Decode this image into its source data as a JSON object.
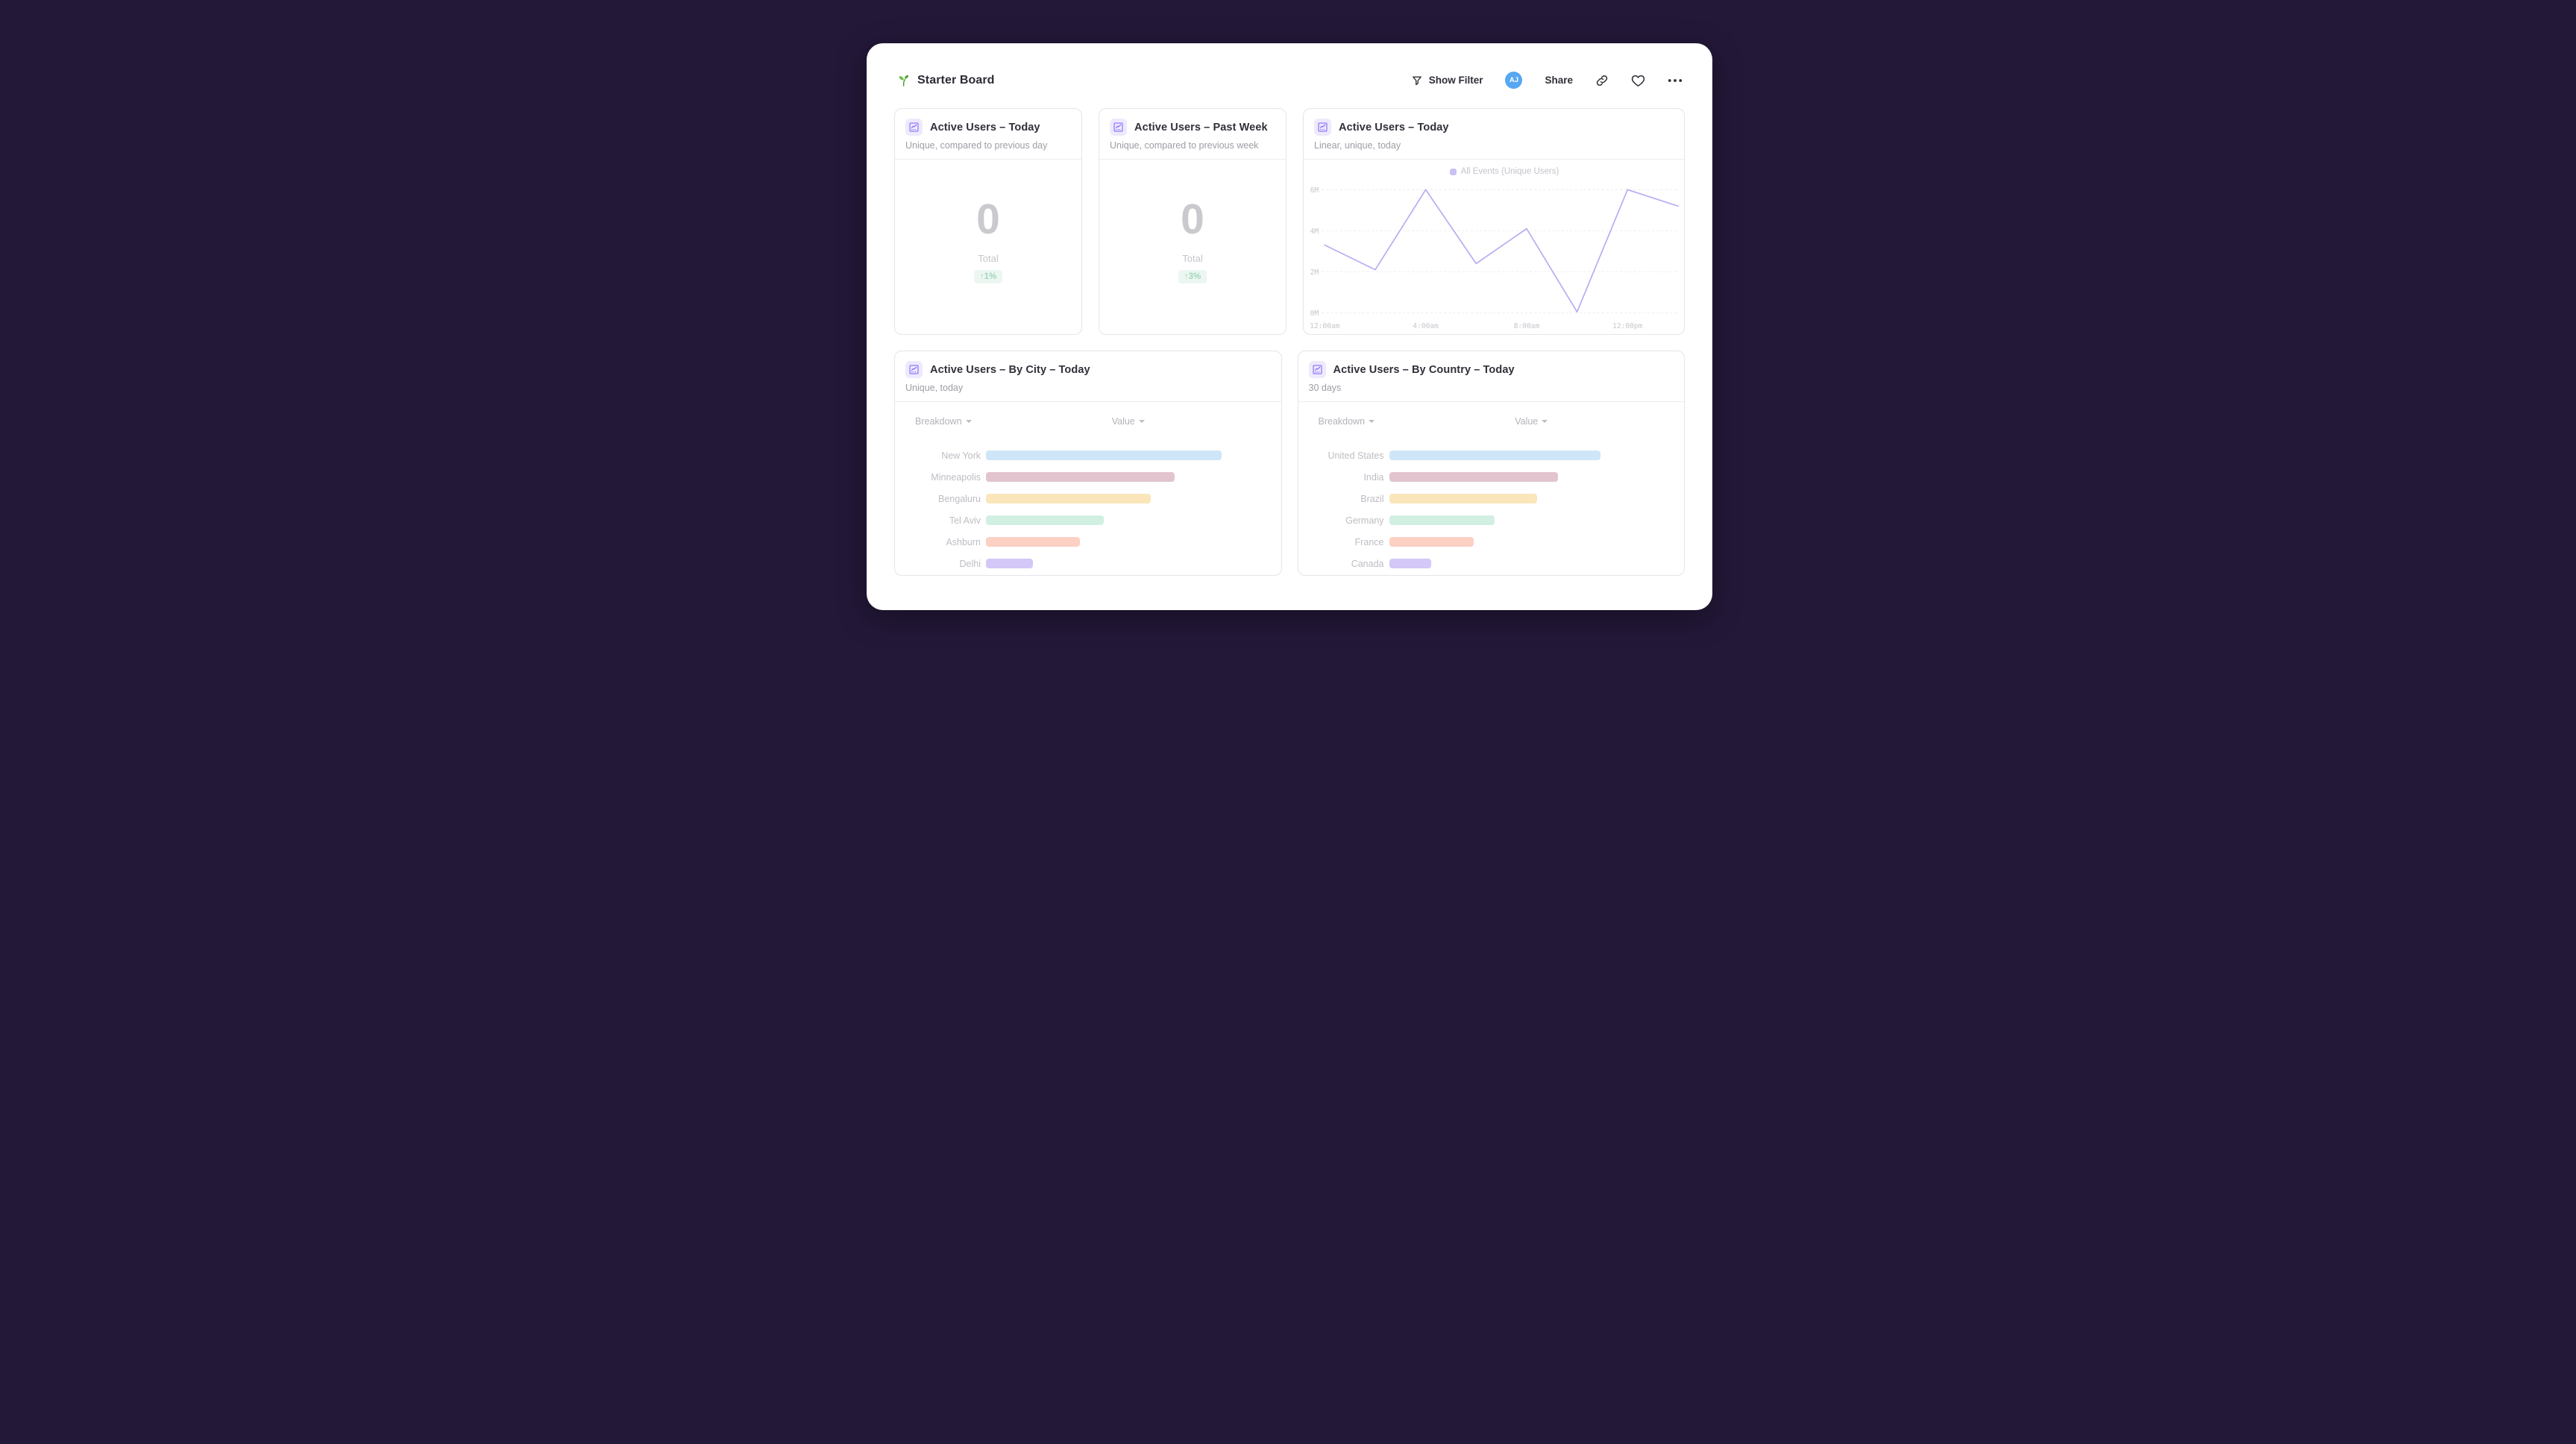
{
  "header": {
    "title": "Starter Board",
    "show_filter_label": "Show Filter",
    "avatar_initials": "AJ",
    "share_label": "Share"
  },
  "cards": {
    "kpi_today": {
      "title": "Active Users – Today",
      "subtitle": "Unique, compared to previous day",
      "value": "0",
      "value_label": "Total",
      "delta": "↑1%",
      "delta_color": "#a3d6bd"
    },
    "kpi_week": {
      "title": "Active Users – Past Week",
      "subtitle": "Unique, compared to previous week",
      "value": "0",
      "value_label": "Total",
      "delta": "↑3%",
      "delta_color": "#a3d6bd"
    },
    "line_chart": {
      "title": "Active Users – Today",
      "subtitle": "Linear, unique, today",
      "legend": "All Events (Unique Users)"
    },
    "by_city": {
      "title": "Active Users – By City – Today",
      "subtitle": "Unique, today",
      "col_breakdown": "Breakdown",
      "col_value": "Value"
    },
    "by_country": {
      "title": "Active Users – By Country – Today",
      "subtitle": "30 days",
      "col_breakdown": "Breakdown",
      "col_value": "Value"
    }
  },
  "chart_data": [
    {
      "type": "line",
      "title": "Active Users – Today",
      "legend_entries": [
        "All Events (Unique Users)"
      ],
      "legend_position": "top-center",
      "x": [
        "12:00am",
        "2:00am",
        "4:00am",
        "6:00am",
        "8:00am",
        "10:00am",
        "12:00pm",
        "2:00pm"
      ],
      "series": [
        {
          "name": "All Events (Unique Users)",
          "values_millions": [
            3.3,
            2.1,
            6.0,
            2.4,
            4.1,
            0.05,
            6.0,
            5.2
          ]
        }
      ],
      "ylim_millions": [
        0,
        6
      ],
      "y_ticks": [
        "6M",
        "4M",
        "2M",
        "0M"
      ],
      "x_ticks": [
        "12:00am",
        "4:00am",
        "8:00am",
        "12:00pm"
      ],
      "grid": "horizontal-dashed",
      "line_color": "#b9adf2"
    },
    {
      "type": "bar",
      "orientation": "horizontal",
      "title": "Active Users – By City – Today",
      "categories": [
        "New York",
        "Minneapolis",
        "Bengaluru",
        "Tel Aviv",
        "Ashburn",
        "Delhi"
      ],
      "values_pct_of_max": [
        100,
        80,
        70,
        50,
        40,
        20
      ],
      "colors": [
        "#cfe6f8",
        "#e2c4cf",
        "#fae6ba",
        "#d2f0e2",
        "#fcd0c3",
        "#d3c8f8"
      ]
    },
    {
      "type": "bar",
      "orientation": "horizontal",
      "title": "Active Users – By Country – Today",
      "categories": [
        "United States",
        "India",
        "Brazil",
        "Germany",
        "France",
        "Canada"
      ],
      "values_pct_of_max": [
        100,
        80,
        70,
        50,
        40,
        20
      ],
      "colors": [
        "#cfe6f8",
        "#e2c4cf",
        "#fae6ba",
        "#d2f0e2",
        "#fcd0c3",
        "#d3c8f8"
      ]
    }
  ],
  "colors": {
    "page_background": "#231838",
    "accent_purple": "#7d5df8",
    "avatar_blue": "#57a7f2",
    "delta_green_bg": "#edf7f2",
    "line_lavender": "#b9adf2"
  }
}
